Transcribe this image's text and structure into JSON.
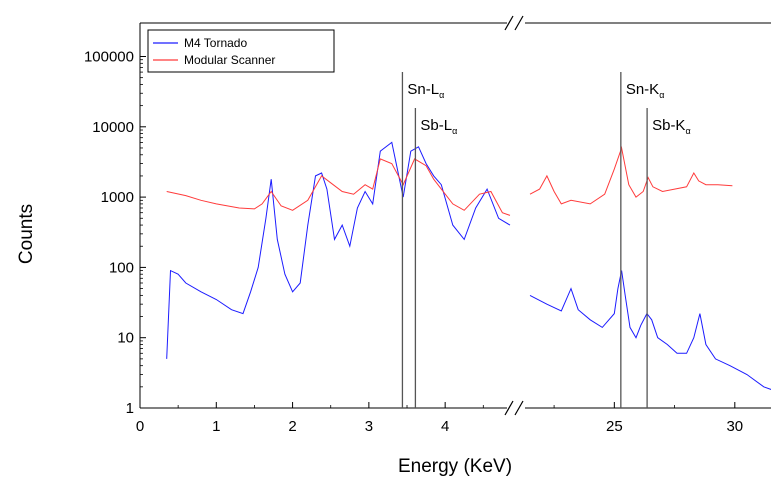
{
  "chart_data": {
    "type": "line",
    "xlabel": "Energy (KeV)",
    "ylabel": "Counts",
    "yscale": "log",
    "ylim": [
      1,
      300000
    ],
    "x_axis_break": true,
    "x_segments": [
      {
        "xlim": [
          0,
          4.85
        ],
        "ticks": [
          0,
          1,
          2,
          3,
          4
        ],
        "tick_labels": [
          "0",
          "1",
          "2",
          "3",
          "4"
        ]
      },
      {
        "xlim": [
          21.5,
          32
        ],
        "ticks": [
          25,
          30
        ],
        "tick_labels": [
          "25",
          "30"
        ]
      }
    ],
    "yticks": [
      1,
      10,
      100,
      1000,
      10000,
      100000
    ],
    "ytick_labels": [
      "1",
      "10",
      "100",
      "1000",
      "10000",
      "100000"
    ],
    "legend": {
      "placement": "top-left",
      "entries": [
        "M4 Tornado",
        "Modular Scanner"
      ]
    },
    "series": [
      {
        "name": "M4 Tornado",
        "color": "#1c1cff",
        "x": [
          0.35,
          0.4,
          0.5,
          0.6,
          0.8,
          1.0,
          1.2,
          1.35,
          1.45,
          1.55,
          1.65,
          1.72,
          1.8,
          1.9,
          2.0,
          2.1,
          2.2,
          2.3,
          2.38,
          2.45,
          2.55,
          2.65,
          2.75,
          2.85,
          2.95,
          3.05,
          3.15,
          3.3,
          3.45,
          3.55,
          3.65,
          3.75,
          3.85,
          3.95,
          4.1,
          4.25,
          4.4,
          4.55,
          4.7,
          4.85,
          21.5,
          22.2,
          22.8,
          23.2,
          23.5,
          24.0,
          24.5,
          25.0,
          25.15,
          25.3,
          25.45,
          25.65,
          25.9,
          26.1,
          26.35,
          26.55,
          26.8,
          27.2,
          27.6,
          28.0,
          28.3,
          28.55,
          28.8,
          29.2,
          29.8,
          30.5,
          31.2,
          32.0
        ],
        "y": [
          5,
          90,
          80,
          60,
          45,
          35,
          25,
          22,
          45,
          100,
          500,
          1800,
          250,
          80,
          45,
          60,
          400,
          2000,
          2200,
          1300,
          250,
          400,
          200,
          700,
          1200,
          800,
          4500,
          6000,
          1000,
          4500,
          5200,
          3000,
          2000,
          1500,
          400,
          250,
          700,
          1300,
          500,
          400,
          40,
          30,
          24,
          50,
          25,
          18,
          14,
          22,
          50,
          90,
          40,
          14,
          10,
          15,
          22,
          18,
          10,
          8,
          6,
          6,
          10,
          22,
          8,
          5,
          4,
          3,
          2,
          1.6
        ]
      },
      {
        "name": "Modular Scanner",
        "color": "#ff3b3b",
        "x": [
          0.35,
          0.6,
          0.8,
          1.0,
          1.3,
          1.5,
          1.6,
          1.72,
          1.85,
          2.0,
          2.2,
          2.38,
          2.5,
          2.65,
          2.8,
          2.95,
          3.05,
          3.15,
          3.3,
          3.45,
          3.6,
          3.75,
          3.85,
          3.95,
          4.1,
          4.25,
          4.45,
          4.6,
          4.75,
          4.85,
          21.5,
          21.9,
          22.2,
          22.5,
          22.8,
          23.2,
          24.0,
          24.6,
          25.0,
          25.3,
          25.6,
          25.9,
          26.2,
          26.4,
          26.6,
          27.0,
          27.5,
          28.0,
          28.3,
          28.5,
          28.8,
          29.3,
          29.9
        ],
        "y": [
          1200,
          1050,
          900,
          800,
          700,
          680,
          800,
          1200,
          750,
          650,
          900,
          2000,
          1600,
          1200,
          1100,
          1500,
          1300,
          3500,
          3000,
          1500,
          3500,
          2800,
          1800,
          1300,
          800,
          650,
          1100,
          1200,
          600,
          550,
          1100,
          1300,
          2000,
          1200,
          800,
          900,
          800,
          1100,
          2500,
          5000,
          1500,
          1000,
          1200,
          1900,
          1400,
          1200,
          1300,
          1400,
          2200,
          1700,
          1500,
          1500,
          1450
        ]
      }
    ],
    "annotations": [
      {
        "main": "Sn-L",
        "sub": "α",
        "x": 3.44
      },
      {
        "main": "Sb-L",
        "sub": "α",
        "x": 3.61
      },
      {
        "main": "Sn-K",
        "sub": "α",
        "x": 25.27
      },
      {
        "main": "Sb-K",
        "sub": "α",
        "x": 26.36
      }
    ]
  }
}
